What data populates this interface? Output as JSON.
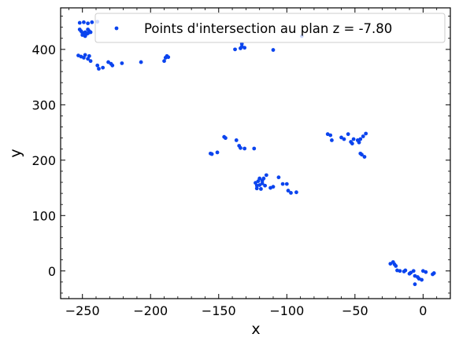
{
  "chart_data": {
    "type": "scatter",
    "title": "",
    "xlabel": "x",
    "ylabel": "y",
    "xlim": [
      -266,
      20
    ],
    "ylim": [
      -50,
      475
    ],
    "xticks": [
      -250,
      -200,
      -150,
      -100,
      -50,
      0
    ],
    "yticks": [
      0,
      100,
      200,
      300,
      400
    ],
    "grid": false,
    "legend_position": "top-right",
    "series": [
      {
        "name": "Points d'intersection au plan z = -7.80",
        "color": "#0b44ee",
        "points": [
          [
            -252,
            448
          ],
          [
            -249,
            449
          ],
          [
            -246,
            447
          ],
          [
            -243,
            449
          ],
          [
            -239,
            450
          ],
          [
            -252,
            436
          ],
          [
            -251,
            433
          ],
          [
            -250,
            430
          ],
          [
            -249,
            427
          ],
          [
            -248,
            431
          ],
          [
            -247,
            428
          ],
          [
            -246,
            436
          ],
          [
            -245,
            433
          ],
          [
            -244,
            431
          ],
          [
            -250,
            426
          ],
          [
            -248,
            424
          ],
          [
            -246,
            429
          ],
          [
            -253,
            389
          ],
          [
            -251,
            387
          ],
          [
            -249,
            385
          ],
          [
            -248,
            390
          ],
          [
            -246,
            383
          ],
          [
            -245,
            388
          ],
          [
            -244,
            379
          ],
          [
            -239,
            371
          ],
          [
            -238,
            365
          ],
          [
            -235,
            367
          ],
          [
            -231,
            377
          ],
          [
            -229,
            374
          ],
          [
            -228,
            371
          ],
          [
            -221,
            375
          ],
          [
            -207,
            377
          ],
          [
            -190,
            379
          ],
          [
            -189,
            385
          ],
          [
            -188,
            388
          ],
          [
            -187,
            386
          ],
          [
            -138,
            400
          ],
          [
            -134,
            402
          ],
          [
            -133,
            405
          ],
          [
            -133,
            410
          ],
          [
            -131,
            403
          ],
          [
            -110,
            399
          ],
          [
            -89,
            424
          ],
          [
            -156,
            212
          ],
          [
            -155,
            211
          ],
          [
            -151,
            214
          ],
          [
            -146,
            242
          ],
          [
            -145,
            240
          ],
          [
            -137,
            236
          ],
          [
            -135,
            226
          ],
          [
            -134,
            222
          ],
          [
            -131,
            221
          ],
          [
            -124,
            221
          ],
          [
            -123,
            159
          ],
          [
            -122,
            154
          ],
          [
            -122,
            149
          ],
          [
            -121,
            162
          ],
          [
            -120,
            167
          ],
          [
            -120,
            155
          ],
          [
            -119,
            148
          ],
          [
            -118,
            163
          ],
          [
            -118,
            158
          ],
          [
            -117,
            167
          ],
          [
            -116,
            154
          ],
          [
            -115,
            173
          ],
          [
            -112,
            150
          ],
          [
            -110,
            152
          ],
          [
            -106,
            169
          ],
          [
            -103,
            157
          ],
          [
            -100,
            157
          ],
          [
            -99,
            145
          ],
          [
            -97,
            141
          ],
          [
            -93,
            142
          ],
          [
            -70,
            247
          ],
          [
            -68,
            245
          ],
          [
            -67,
            236
          ],
          [
            -60,
            241
          ],
          [
            -58,
            238
          ],
          [
            -55,
            247
          ],
          [
            -53,
            233
          ],
          [
            -52,
            230
          ],
          [
            -51,
            238
          ],
          [
            -48,
            236
          ],
          [
            -47,
            232
          ],
          [
            -46,
            238
          ],
          [
            -46,
            212
          ],
          [
            -45,
            210
          ],
          [
            -44,
            243
          ],
          [
            -43,
            206
          ],
          [
            -42,
            248
          ],
          [
            -24,
            13
          ],
          [
            -22,
            16
          ],
          [
            -21,
            12
          ],
          [
            -20,
            9
          ],
          [
            -19,
            1
          ],
          [
            -17,
            0
          ],
          [
            -14,
            -1
          ],
          [
            -13,
            1
          ],
          [
            -10,
            -5
          ],
          [
            -9,
            -3
          ],
          [
            -7,
            0
          ],
          [
            -6,
            -24
          ],
          [
            -6,
            -9
          ],
          [
            -4,
            -11
          ],
          [
            -3,
            -14
          ],
          [
            -1,
            -16
          ],
          [
            0,
            0
          ],
          [
            2,
            -2
          ],
          [
            7,
            -6
          ],
          [
            8,
            -4
          ]
        ]
      }
    ]
  }
}
